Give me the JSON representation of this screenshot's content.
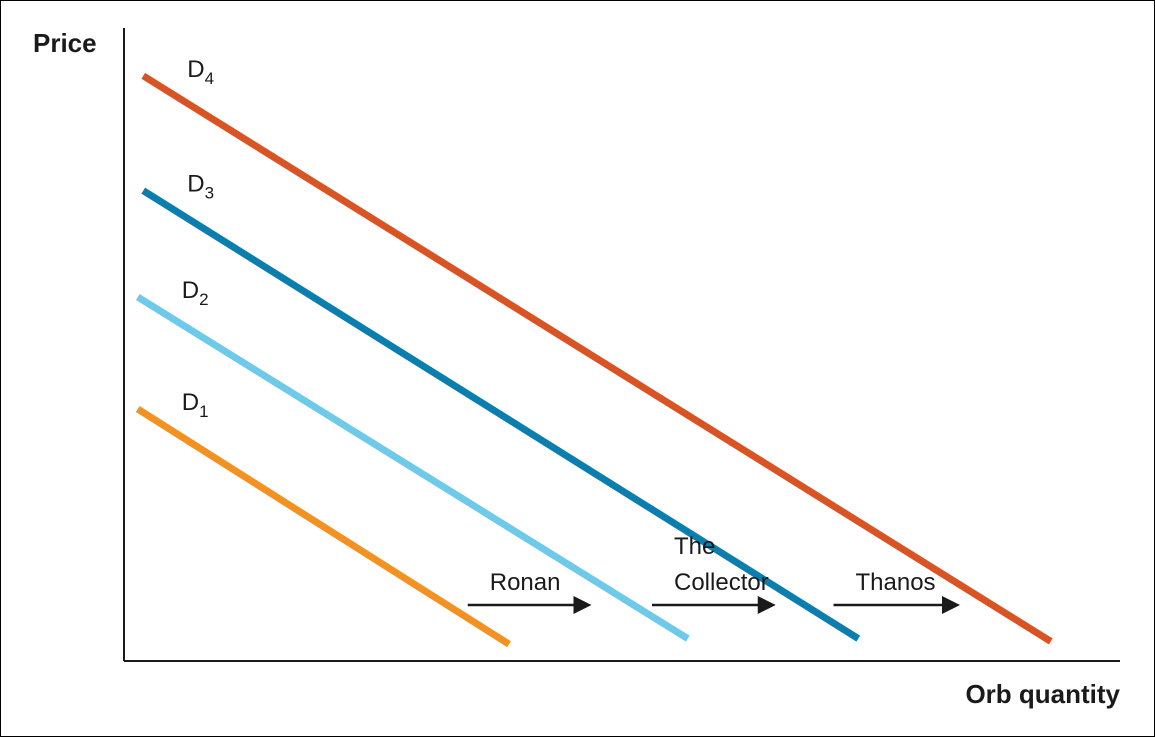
{
  "chart_data": {
    "type": "line",
    "ylabel": "Price",
    "xlabel": "Orb quantity",
    "grid": false,
    "series": [
      {
        "name": "D",
        "subscript": "1",
        "color": "#f29223",
        "x": [
          0.5,
          14.0
        ],
        "y": [
          9.0,
          0.6
        ]
      },
      {
        "name": "D",
        "subscript": "2",
        "color": "#6ecae8",
        "x": [
          0.5,
          20.5
        ],
        "y": [
          13.0,
          0.8
        ]
      },
      {
        "name": "D",
        "subscript": "3",
        "color": "#0b7eae",
        "x": [
          0.7,
          26.7
        ],
        "y": [
          16.8,
          0.8
        ]
      },
      {
        "name": "D",
        "subscript": "4",
        "color": "#d85424",
        "x": [
          0.7,
          33.7
        ],
        "y": [
          20.9,
          0.7
        ]
      }
    ],
    "annotations": [
      {
        "lines": [
          "Ronan"
        ],
        "from": [
          12.5,
          2.0
        ],
        "to": [
          17.0,
          2.0
        ]
      },
      {
        "lines": [
          "The",
          "Collector"
        ],
        "from": [
          19.2,
          2.0
        ],
        "to": [
          23.7,
          2.0
        ]
      },
      {
        "lines": [
          "Thanos"
        ],
        "from": [
          25.8,
          2.0
        ],
        "to": [
          30.4,
          2.0
        ]
      }
    ],
    "xlim": [
      0,
      35
    ],
    "ylim": [
      0,
      22
    ]
  }
}
